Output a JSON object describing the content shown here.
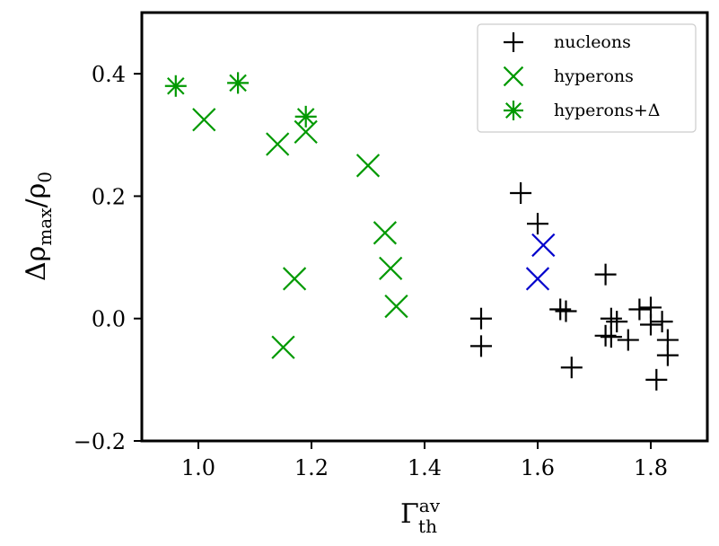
{
  "chart_data": {
    "type": "scatter",
    "xlabel": "Γ_th^av",
    "ylabel": "Δρ_max/ρ_0",
    "xlim": [
      0.9,
      1.9
    ],
    "ylim": [
      -0.2,
      0.5
    ],
    "x_ticks": [
      1.0,
      1.2,
      1.4,
      1.6,
      1.8
    ],
    "x_tick_labels": [
      "1.0",
      "1.2",
      "1.4",
      "1.6",
      "1.8"
    ],
    "y_ticks": [
      -0.2,
      0.0,
      0.2,
      0.4
    ],
    "y_tick_labels": [
      "−0.2",
      "0.0",
      "0.2",
      "0.4"
    ],
    "grid": false,
    "legend_position": "top-right",
    "series": [
      {
        "name": "nucleons",
        "marker": "plus",
        "color": "#000000",
        "points": [
          [
            1.5,
            0.0
          ],
          [
            1.5,
            -0.045
          ],
          [
            1.57,
            0.205
          ],
          [
            1.6,
            0.155
          ],
          [
            1.64,
            0.015
          ],
          [
            1.65,
            0.012
          ],
          [
            1.66,
            -0.08
          ],
          [
            1.72,
            0.072
          ],
          [
            1.72,
            -0.028
          ],
          [
            1.73,
            0.0
          ],
          [
            1.73,
            -0.03
          ],
          [
            1.74,
            -0.005
          ],
          [
            1.76,
            -0.035
          ],
          [
            1.78,
            0.015
          ],
          [
            1.8,
            0.018
          ],
          [
            1.8,
            -0.01
          ],
          [
            1.81,
            -0.1
          ],
          [
            1.82,
            -0.005
          ],
          [
            1.83,
            -0.035
          ],
          [
            1.83,
            -0.06
          ]
        ]
      },
      {
        "name": "hyperons",
        "marker": "x",
        "color": "#009900",
        "points": [
          [
            1.01,
            0.325
          ],
          [
            1.14,
            0.285
          ],
          [
            1.19,
            0.305
          ],
          [
            1.3,
            0.25
          ],
          [
            1.33,
            0.14
          ],
          [
            1.34,
            0.082
          ],
          [
            1.35,
            0.02
          ],
          [
            1.17,
            0.065
          ],
          [
            1.15,
            -0.047
          ]
        ]
      },
      {
        "name": "",
        "marker": "x",
        "color": "#0000cc",
        "points": [
          [
            1.61,
            0.12
          ],
          [
            1.6,
            0.065
          ]
        ]
      },
      {
        "name": "hyperons+Δ",
        "marker": "asterisk",
        "color": "#009900",
        "points": [
          [
            0.96,
            0.38
          ],
          [
            1.07,
            0.385
          ],
          [
            1.19,
            0.33
          ]
        ]
      }
    ],
    "legend": [
      {
        "label": "nucleons",
        "marker": "plus",
        "color": "#000000"
      },
      {
        "label": "hyperons",
        "marker": "x",
        "color": "#009900"
      },
      {
        "label": "hyperons+Δ",
        "marker": "asterisk",
        "color": "#009900"
      }
    ]
  }
}
